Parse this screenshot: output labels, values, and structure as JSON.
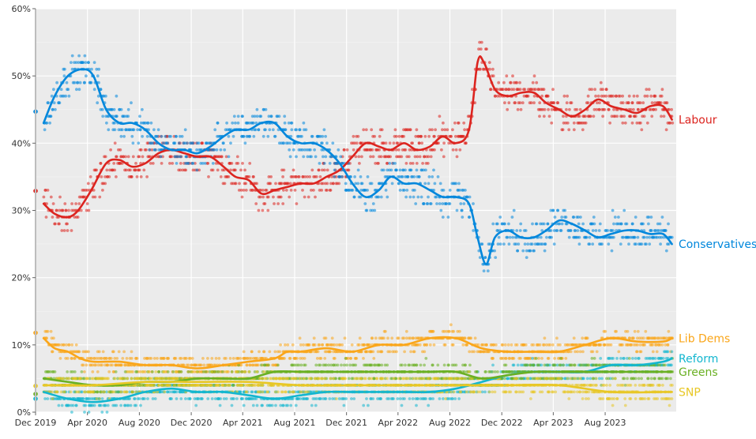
{
  "chart_data": {
    "type": "scatter",
    "title": "",
    "xlabel": "",
    "ylabel": "",
    "ylim": [
      0,
      60
    ],
    "y_ticks": [
      {
        "value": 0,
        "label": "0%"
      },
      {
        "value": 10,
        "label": "10%"
      },
      {
        "value": 20,
        "label": "20%"
      },
      {
        "value": 30,
        "label": "30%"
      },
      {
        "value": 40,
        "label": "40%"
      },
      {
        "value": 50,
        "label": "50%"
      },
      {
        "value": 60,
        "label": "60%"
      }
    ],
    "xlim": [
      "2019-12-01",
      "2024-01-15"
    ],
    "x_ticks": [
      {
        "date": "2019-12-01",
        "label": "Dec 2019"
      },
      {
        "date": "2020-04-01",
        "label": "Apr 2020"
      },
      {
        "date": "2020-08-01",
        "label": "Aug 2020"
      },
      {
        "date": "2020-12-01",
        "label": "Dec 2020"
      },
      {
        "date": "2021-04-01",
        "label": "Apr 2021"
      },
      {
        "date": "2021-08-01",
        "label": "Aug 2021"
      },
      {
        "date": "2021-12-01",
        "label": "Dec 2021"
      },
      {
        "date": "2022-04-01",
        "label": "Apr 2022"
      },
      {
        "date": "2022-08-01",
        "label": "Aug 2022"
      },
      {
        "date": "2022-12-01",
        "label": "Dec 2022"
      },
      {
        "date": "2023-04-01",
        "label": "Apr 2023"
      },
      {
        "date": "2023-08-01",
        "label": "Aug 2023"
      }
    ],
    "grid": true,
    "series": [
      {
        "name": "Labour",
        "color": "#dc241f",
        "election_value": 32.9,
        "trend": [
          [
            "2019-12-20",
            31
          ],
          [
            "2020-01-15",
            29.5
          ],
          [
            "2020-02-15",
            29
          ],
          [
            "2020-03-10",
            30
          ],
          [
            "2020-04-10",
            33
          ],
          [
            "2020-05-15",
            37
          ],
          [
            "2020-06-15",
            37.5
          ],
          [
            "2020-07-15",
            36.5
          ],
          [
            "2020-08-15",
            37
          ],
          [
            "2020-09-15",
            38.5
          ],
          [
            "2020-10-15",
            39
          ],
          [
            "2020-11-15",
            38.5
          ],
          [
            "2020-12-15",
            38
          ],
          [
            "2021-01-15",
            38
          ],
          [
            "2021-02-15",
            36.5
          ],
          [
            "2021-03-15",
            35
          ],
          [
            "2021-04-15",
            34.5
          ],
          [
            "2021-05-15",
            32.5
          ],
          [
            "2021-06-15",
            33
          ],
          [
            "2021-07-15",
            33.5
          ],
          [
            "2021-08-15",
            34
          ],
          [
            "2021-09-15",
            34
          ],
          [
            "2021-10-15",
            35
          ],
          [
            "2021-11-15",
            36
          ],
          [
            "2021-12-15",
            38
          ],
          [
            "2022-01-15",
            40
          ],
          [
            "2022-02-15",
            39.5
          ],
          [
            "2022-03-15",
            39
          ],
          [
            "2022-04-15",
            40
          ],
          [
            "2022-05-15",
            39
          ],
          [
            "2022-06-15",
            39.5
          ],
          [
            "2022-07-15",
            41
          ],
          [
            "2022-08-15",
            40
          ],
          [
            "2022-09-15",
            42
          ],
          [
            "2022-10-05",
            52
          ],
          [
            "2022-10-20",
            52
          ],
          [
            "2022-11-15",
            48
          ],
          [
            "2022-12-15",
            47
          ],
          [
            "2023-01-15",
            47.5
          ],
          [
            "2023-02-15",
            47.5
          ],
          [
            "2023-03-15",
            46
          ],
          [
            "2023-04-15",
            45
          ],
          [
            "2023-05-15",
            44
          ],
          [
            "2023-06-15",
            45
          ],
          [
            "2023-07-15",
            46.5
          ],
          [
            "2023-08-15",
            45.5
          ],
          [
            "2023-09-15",
            45
          ],
          [
            "2023-10-15",
            44.5
          ],
          [
            "2023-11-15",
            45.5
          ],
          [
            "2023-12-15",
            45.5
          ],
          [
            "2024-01-05",
            43.5
          ]
        ]
      },
      {
        "name": "Conservatives",
        "color": "#0087dc",
        "election_value": 44.7,
        "trend": [
          [
            "2019-12-20",
            43
          ],
          [
            "2020-01-15",
            47
          ],
          [
            "2020-02-15",
            50
          ],
          [
            "2020-03-20",
            51
          ],
          [
            "2020-04-15",
            50
          ],
          [
            "2020-05-15",
            45
          ],
          [
            "2020-06-15",
            43
          ],
          [
            "2020-07-15",
            43
          ],
          [
            "2020-08-15",
            42
          ],
          [
            "2020-09-15",
            40
          ],
          [
            "2020-10-15",
            39
          ],
          [
            "2020-11-15",
            39
          ],
          [
            "2020-12-15",
            38.5
          ],
          [
            "2021-01-15",
            39.5
          ],
          [
            "2021-02-15",
            41
          ],
          [
            "2021-03-15",
            42
          ],
          [
            "2021-04-15",
            42
          ],
          [
            "2021-05-15",
            43
          ],
          [
            "2021-06-15",
            43
          ],
          [
            "2021-07-15",
            41
          ],
          [
            "2021-08-15",
            40
          ],
          [
            "2021-09-15",
            40
          ],
          [
            "2021-10-15",
            39
          ],
          [
            "2021-11-15",
            37
          ],
          [
            "2021-12-15",
            34
          ],
          [
            "2022-01-15",
            32
          ],
          [
            "2022-02-15",
            33
          ],
          [
            "2022-03-15",
            35
          ],
          [
            "2022-04-15",
            34
          ],
          [
            "2022-05-15",
            34
          ],
          [
            "2022-06-15",
            33
          ],
          [
            "2022-07-15",
            32
          ],
          [
            "2022-08-15",
            32
          ],
          [
            "2022-09-15",
            31
          ],
          [
            "2022-10-05",
            26
          ],
          [
            "2022-10-25",
            22
          ],
          [
            "2022-11-15",
            26
          ],
          [
            "2022-12-15",
            27
          ],
          [
            "2023-01-15",
            26
          ],
          [
            "2023-02-15",
            26
          ],
          [
            "2023-03-15",
            27
          ],
          [
            "2023-04-15",
            28.5
          ],
          [
            "2023-05-15",
            28
          ],
          [
            "2023-06-15",
            27
          ],
          [
            "2023-07-15",
            26
          ],
          [
            "2023-08-15",
            26.5
          ],
          [
            "2023-09-15",
            27
          ],
          [
            "2023-10-15",
            27
          ],
          [
            "2023-11-15",
            26.5
          ],
          [
            "2023-12-15",
            26.5
          ],
          [
            "2024-01-05",
            25
          ]
        ]
      },
      {
        "name": "Lib Dems",
        "color": "#faa61a",
        "election_value": 11.8,
        "trend": [
          [
            "2019-12-20",
            11
          ],
          [
            "2020-01-15",
            9.5
          ],
          [
            "2020-02-15",
            9
          ],
          [
            "2020-03-15",
            8
          ],
          [
            "2020-04-15",
            7.5
          ],
          [
            "2020-06-15",
            7.5
          ],
          [
            "2020-08-15",
            7
          ],
          [
            "2020-10-15",
            7
          ],
          [
            "2020-12-15",
            6.5
          ],
          [
            "2021-02-15",
            7
          ],
          [
            "2021-04-15",
            7.5
          ],
          [
            "2021-06-15",
            8
          ],
          [
            "2021-07-15",
            9
          ],
          [
            "2021-08-15",
            9
          ],
          [
            "2021-10-15",
            9.5
          ],
          [
            "2021-12-15",
            9
          ],
          [
            "2022-02-15",
            10
          ],
          [
            "2022-04-15",
            10
          ],
          [
            "2022-06-15",
            11
          ],
          [
            "2022-08-15",
            11
          ],
          [
            "2022-10-15",
            9.5
          ],
          [
            "2022-12-15",
            9
          ],
          [
            "2023-02-15",
            9
          ],
          [
            "2023-04-15",
            9
          ],
          [
            "2023-06-15",
            10
          ],
          [
            "2023-08-15",
            11
          ],
          [
            "2023-10-15",
            10.5
          ],
          [
            "2023-12-15",
            10.5
          ],
          [
            "2024-01-05",
            11
          ]
        ]
      },
      {
        "name": "Reform",
        "color": "#12b6cf",
        "election_value": 2.0,
        "trend": [
          [
            "2019-12-20",
            3
          ],
          [
            "2020-02-15",
            2
          ],
          [
            "2020-04-15",
            1.5
          ],
          [
            "2020-06-15",
            2
          ],
          [
            "2020-08-15",
            3
          ],
          [
            "2020-10-15",
            3.5
          ],
          [
            "2020-12-15",
            3
          ],
          [
            "2021-02-15",
            3
          ],
          [
            "2021-04-15",
            2.5
          ],
          [
            "2021-06-15",
            2
          ],
          [
            "2021-08-15",
            2.5
          ],
          [
            "2021-10-15",
            3
          ],
          [
            "2021-12-15",
            3
          ],
          [
            "2022-02-15",
            3
          ],
          [
            "2022-04-15",
            3
          ],
          [
            "2022-06-15",
            3
          ],
          [
            "2022-08-15",
            3.5
          ],
          [
            "2022-10-15",
            4.5
          ],
          [
            "2022-12-15",
            5.5
          ],
          [
            "2023-02-15",
            6
          ],
          [
            "2023-04-15",
            6
          ],
          [
            "2023-06-15",
            6
          ],
          [
            "2023-08-15",
            7
          ],
          [
            "2023-10-15",
            7
          ],
          [
            "2023-12-15",
            7.5
          ],
          [
            "2024-01-05",
            8
          ]
        ]
      },
      {
        "name": "Greens",
        "color": "#6ab023",
        "election_value": 2.7,
        "trend": [
          [
            "2019-12-20",
            5
          ],
          [
            "2020-02-15",
            4.5
          ],
          [
            "2020-04-15",
            4
          ],
          [
            "2020-06-15",
            4
          ],
          [
            "2020-08-15",
            4.5
          ],
          [
            "2020-10-15",
            4.5
          ],
          [
            "2020-12-15",
            5
          ],
          [
            "2021-02-15",
            5
          ],
          [
            "2021-04-15",
            5
          ],
          [
            "2021-06-15",
            6
          ],
          [
            "2021-08-15",
            6
          ],
          [
            "2021-10-15",
            6
          ],
          [
            "2021-12-15",
            6
          ],
          [
            "2022-02-15",
            6
          ],
          [
            "2022-04-15",
            6
          ],
          [
            "2022-06-15",
            6
          ],
          [
            "2022-08-15",
            6
          ],
          [
            "2022-10-15",
            5
          ],
          [
            "2022-12-15",
            5.5
          ],
          [
            "2023-02-15",
            6
          ],
          [
            "2023-04-15",
            6
          ],
          [
            "2023-06-15",
            6
          ],
          [
            "2023-08-15",
            6
          ],
          [
            "2023-10-15",
            6
          ],
          [
            "2023-12-15",
            6
          ],
          [
            "2024-01-05",
            6
          ]
        ]
      },
      {
        "name": "SNP",
        "color": "#e8c725",
        "election_value": 3.9,
        "trend": [
          [
            "2019-12-20",
            4
          ],
          [
            "2020-04-15",
            4
          ],
          [
            "2020-08-15",
            4.5
          ],
          [
            "2020-12-15",
            4.5
          ],
          [
            "2021-04-15",
            4.5
          ],
          [
            "2021-08-15",
            4
          ],
          [
            "2021-12-15",
            4
          ],
          [
            "2022-04-15",
            4
          ],
          [
            "2022-08-15",
            4
          ],
          [
            "2022-12-15",
            4
          ],
          [
            "2023-04-15",
            4
          ],
          [
            "2023-08-15",
            3
          ],
          [
            "2023-12-15",
            3
          ],
          [
            "2024-01-05",
            3
          ]
        ]
      }
    ]
  }
}
